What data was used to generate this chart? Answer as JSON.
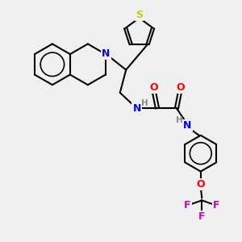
{
  "bg_color": "#f0f0f0",
  "bond_color": "#000000",
  "bond_width": 1.5,
  "figsize": [
    3.0,
    3.0
  ],
  "dpi": 100,
  "xlim": [
    0,
    10
  ],
  "ylim": [
    0,
    10
  ],
  "atom_colors": {
    "N": "#0000ff",
    "O": "#ff0000",
    "S": "#cccc00",
    "F": "#cc00cc",
    "H_label": "#888888"
  }
}
